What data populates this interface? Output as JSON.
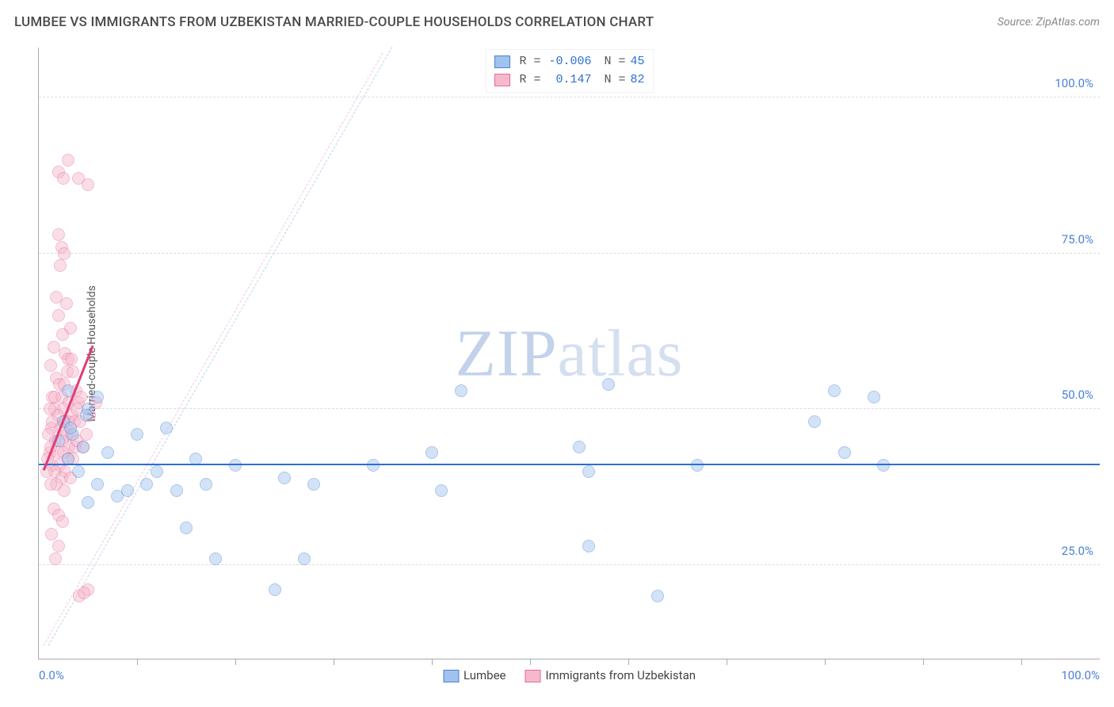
{
  "title": "LUMBEE VS IMMIGRANTS FROM UZBEKISTAN MARRIED-COUPLE HOUSEHOLDS CORRELATION CHART",
  "source": "Source: ZipAtlas.com",
  "watermark_a": "ZIP",
  "watermark_b": "atlas",
  "chart": {
    "type": "scatter",
    "background_color": "#ffffff",
    "grid_color": "#dcdcdc",
    "axis_color": "#aaaaaa",
    "tick_label_color": "#4a80d6",
    "y_label": "Married-couple Households",
    "y_label_color": "#555555",
    "xlim": [
      0,
      108
    ],
    "ylim": [
      10,
      108
    ],
    "x_ticks_minor": [
      10,
      20,
      30,
      40,
      50,
      60,
      70,
      80,
      90,
      100
    ],
    "x_label_min": "0.0%",
    "x_label_max": "100.0%",
    "y_gridlines": [
      {
        "value": 25,
        "label": "25.0%"
      },
      {
        "value": 50,
        "label": "50.0%"
      },
      {
        "value": 75,
        "label": "75.0%"
      },
      {
        "value": 100,
        "label": "100.0%"
      }
    ],
    "label_fontsize": 15,
    "marker_radius": 8,
    "marker_opacity": 0.45,
    "series": [
      {
        "name": "Lumbee",
        "fill": "#9fc2ee",
        "stroke": "#4a80d6",
        "R": "-0.006",
        "N": "45",
        "trend": {
          "x1": 0,
          "y1": 41,
          "x2": 108,
          "y2": 41,
          "color": "#2a6fd6",
          "width": 2.5
        },
        "ref": {
          "x1": 1,
          "y1": 12,
          "x2": 36,
          "y2": 108,
          "color": "#bcd1ef"
        },
        "points": [
          [
            2,
            45
          ],
          [
            2.5,
            48
          ],
          [
            3,
            42
          ],
          [
            3,
            53
          ],
          [
            3.5,
            46
          ],
          [
            4,
            40
          ],
          [
            4.5,
            44
          ],
          [
            5,
            50
          ],
          [
            5,
            35
          ],
          [
            6,
            38
          ],
          [
            7,
            43
          ],
          [
            8,
            36
          ],
          [
            9,
            37
          ],
          [
            10,
            46
          ],
          [
            11,
            38
          ],
          [
            12,
            40
          ],
          [
            13,
            47
          ],
          [
            14,
            37
          ],
          [
            15,
            31
          ],
          [
            16,
            42
          ],
          [
            17,
            38
          ],
          [
            18,
            26
          ],
          [
            24,
            21
          ],
          [
            25,
            39
          ],
          [
            27,
            26
          ],
          [
            28,
            38
          ],
          [
            40,
            43
          ],
          [
            41,
            37
          ],
          [
            43,
            53
          ],
          [
            55,
            44
          ],
          [
            56,
            40
          ],
          [
            56,
            28
          ],
          [
            58,
            54
          ],
          [
            63,
            20
          ],
          [
            67,
            41
          ],
          [
            79,
            48
          ],
          [
            81,
            53
          ],
          [
            82,
            43
          ],
          [
            85,
            52
          ],
          [
            86,
            41
          ],
          [
            34,
            41
          ],
          [
            20,
            41
          ],
          [
            6,
            52
          ],
          [
            3.2,
            47
          ],
          [
            4.8,
            49
          ]
        ]
      },
      {
        "name": "Immigrants from Uzbekistan",
        "fill": "#f6b8cc",
        "stroke": "#e86b94",
        "R": "0.147",
        "N": "82",
        "trend": {
          "x1": 0.5,
          "y1": 40,
          "x2": 5.5,
          "y2": 60,
          "color": "#e43b72",
          "width": 2.5
        },
        "ref": {
          "x1": 0.5,
          "y1": 12,
          "x2": 35,
          "y2": 107,
          "color": "#f5c9d7"
        },
        "points": [
          [
            2,
            88
          ],
          [
            2.5,
            87
          ],
          [
            3,
            90
          ],
          [
            4,
            87
          ],
          [
            5,
            86
          ],
          [
            2,
            78
          ],
          [
            2.3,
            76
          ],
          [
            2.6,
            75
          ],
          [
            2.2,
            73
          ],
          [
            2.8,
            67
          ],
          [
            2,
            65
          ],
          [
            3.2,
            63
          ],
          [
            1.8,
            68
          ],
          [
            2.4,
            62
          ],
          [
            1.5,
            60
          ],
          [
            2.7,
            59
          ],
          [
            3,
            58
          ],
          [
            3.3,
            58
          ],
          [
            1.2,
            57
          ],
          [
            2.9,
            56
          ],
          [
            3.5,
            56
          ],
          [
            1.8,
            55
          ],
          [
            2.1,
            54
          ],
          [
            2.6,
            54
          ],
          [
            3.8,
            53
          ],
          [
            1.4,
            52
          ],
          [
            2.3,
            52
          ],
          [
            3.1,
            51
          ],
          [
            4,
            51
          ],
          [
            1.6,
            50
          ],
          [
            2.5,
            50
          ],
          [
            3.4,
            49
          ],
          [
            1.9,
            49
          ],
          [
            2.7,
            48
          ],
          [
            3,
            48
          ],
          [
            3.6,
            48
          ],
          [
            4.2,
            48
          ],
          [
            5.2,
            49
          ],
          [
            1.3,
            47
          ],
          [
            2.2,
            47
          ],
          [
            2.8,
            46
          ],
          [
            3.3,
            46
          ],
          [
            1.7,
            45
          ],
          [
            2.4,
            45
          ],
          [
            3.1,
            44
          ],
          [
            3.7,
            44
          ],
          [
            1.1,
            43
          ],
          [
            1.9,
            43
          ],
          [
            2.5,
            43
          ],
          [
            3,
            42
          ],
          [
            3.5,
            42
          ],
          [
            1.4,
            41
          ],
          [
            2.1,
            41
          ],
          [
            2.7,
            40
          ],
          [
            1.6,
            40
          ],
          [
            2.3,
            39
          ],
          [
            3.2,
            39
          ],
          [
            1.8,
            38
          ],
          [
            2.6,
            37
          ],
          [
            1.2,
            44
          ],
          [
            3.9,
            45
          ],
          [
            4.5,
            44
          ],
          [
            1.5,
            34
          ],
          [
            2,
            33
          ],
          [
            2.4,
            32
          ],
          [
            1.3,
            30
          ],
          [
            2,
            28
          ],
          [
            1.7,
            26
          ],
          [
            1,
            46
          ],
          [
            1.4,
            48
          ],
          [
            1.1,
            50
          ],
          [
            1.6,
            52
          ],
          [
            0.9,
            42
          ],
          [
            0.8,
            40
          ],
          [
            1.2,
            38
          ],
          [
            5.8,
            51
          ],
          [
            4.8,
            46
          ],
          [
            3.9,
            50
          ],
          [
            4.3,
            52
          ],
          [
            4.1,
            20
          ],
          [
            5,
            21
          ],
          [
            4.6,
            20.5
          ]
        ]
      }
    ]
  },
  "bottom_legend": [
    {
      "label": "Lumbee",
      "fill": "#9fc2ee",
      "stroke": "#4a80d6"
    },
    {
      "label": "Immigrants from Uzbekistan",
      "fill": "#f6b8cc",
      "stroke": "#e86b94"
    }
  ]
}
